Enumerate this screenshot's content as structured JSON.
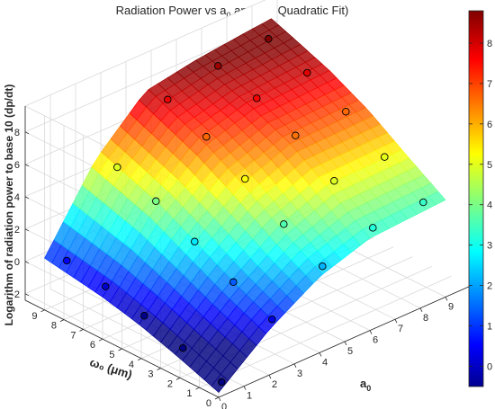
{
  "chart_data": {
    "type": "surface",
    "title_main": "Radiation Power vs a",
    "title_sub_a": "0",
    "title_mid": " and ω",
    "title_sub_w": "0",
    "title_end": " (Quadratic Fit)",
    "zlabel": "Logarithm of radiation power to base 10 (dp/dt)",
    "xlabel_main": "a",
    "xlabel_sub": "0",
    "ylabel": "ω₀ (μm)",
    "zlim": [
      -2,
      9
    ],
    "z_ticks": [
      -2,
      0,
      2,
      4,
      6,
      8
    ],
    "a0_ticks": [
      0,
      1,
      2,
      3,
      4,
      5,
      6,
      7,
      8,
      9
    ],
    "w0_ticks": [
      0,
      1,
      2,
      3,
      4,
      5,
      6,
      7,
      8,
      9
    ],
    "colorbar_ticks": [
      0,
      1,
      2,
      3,
      4,
      5,
      6,
      7,
      8
    ],
    "colorbar_range": [
      -0.5,
      8.8
    ],
    "colormap": "jet",
    "grid": true,
    "points": [
      {
        "a0": 0,
        "w0": 0,
        "z": -2.1
      },
      {
        "a0": 0,
        "w0": 2,
        "z": -1.2
      },
      {
        "a0": 0,
        "w0": 4,
        "z": -0.4
      },
      {
        "a0": 0,
        "w0": 6,
        "z": 0.2
      },
      {
        "a0": 0,
        "w0": 8,
        "z": 0.6
      },
      {
        "a0": 2,
        "w0": 0,
        "z": 0.4
      },
      {
        "a0": 2,
        "w0": 2,
        "z": 1.5
      },
      {
        "a0": 2,
        "w0": 4,
        "z": 2.8
      },
      {
        "a0": 2,
        "w0": 6,
        "z": 4.1
      },
      {
        "a0": 2,
        "w0": 8,
        "z": 5.0
      },
      {
        "a0": 4,
        "w0": 0,
        "z": 2.3
      },
      {
        "a0": 4,
        "w0": 2,
        "z": 3.7
      },
      {
        "a0": 4,
        "w0": 4,
        "z": 5.3
      },
      {
        "a0": 4,
        "w0": 6,
        "z": 6.7
      },
      {
        "a0": 4,
        "w0": 8,
        "z": 7.8
      },
      {
        "a0": 6,
        "w0": 0,
        "z": 3.3
      },
      {
        "a0": 6,
        "w0": 2,
        "z": 5.0
      },
      {
        "a0": 6,
        "w0": 4,
        "z": 6.6
      },
      {
        "a0": 6,
        "w0": 6,
        "z": 7.7
      },
      {
        "a0": 6,
        "w0": 8,
        "z": 8.5
      },
      {
        "a0": 8,
        "w0": 0,
        "z": 3.5
      },
      {
        "a0": 8,
        "w0": 2,
        "z": 5.1
      },
      {
        "a0": 8,
        "w0": 4,
        "z": 6.7
      },
      {
        "a0": 8,
        "w0": 6,
        "z": 7.9
      },
      {
        "a0": 8,
        "w0": 8,
        "z": 8.8
      }
    ]
  }
}
